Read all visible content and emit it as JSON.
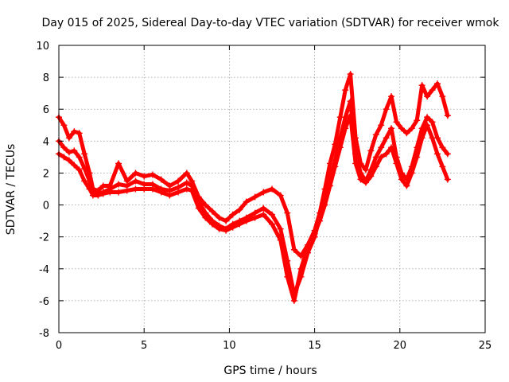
{
  "chart_data": {
    "type": "scatter",
    "title": "Day 015 of 2025, Sidereal Day-to-day VTEC variation (SDTVAR) for receiver wmok",
    "xlabel": "GPS time / hours",
    "ylabel": "SDTVAR / TECUs",
    "xlim": [
      0,
      25
    ],
    "ylim": [
      -8,
      10
    ],
    "xticks": [
      0,
      5,
      10,
      15,
      20,
      25
    ],
    "yticks": [
      -8,
      -6,
      -4,
      -2,
      0,
      2,
      4,
      6,
      8,
      10
    ],
    "grid": true,
    "marker": "+",
    "color": "#ff0000",
    "series": [
      {
        "name": "trace-upper",
        "x": [
          0,
          0.3,
          0.6,
          0.9,
          1.2,
          1.5,
          1.8,
          2.0,
          2.3,
          2.6,
          3.0,
          3.5,
          4.0,
          4.5,
          5.0,
          5.5,
          6.0,
          6.5,
          7.0,
          7.5,
          7.8,
          8.2,
          8.6,
          9.0,
          9.4,
          9.8,
          10.2,
          10.6,
          11.0,
          11.5,
          12.0,
          12.5,
          13.0,
          13.4,
          13.8,
          14.2,
          14.6,
          15.0,
          15.3,
          15.6,
          15.9,
          16.2,
          16.5,
          16.8,
          17.1,
          17.4,
          17.7,
          18.0,
          18.3,
          18.6,
          18.9,
          19.2,
          19.5,
          19.8,
          20.1,
          20.4,
          20.7,
          21.0,
          21.3,
          21.6,
          21.9,
          22.2,
          22.5,
          22.8
        ],
        "y": [
          5.5,
          5.0,
          4.2,
          4.6,
          4.5,
          3.2,
          2.0,
          1.0,
          0.9,
          1.2,
          1.2,
          2.6,
          1.5,
          2.0,
          1.8,
          1.9,
          1.6,
          1.2,
          1.5,
          2.0,
          1.5,
          0.5,
          0.0,
          -0.4,
          -0.8,
          -1.0,
          -0.6,
          -0.3,
          0.2,
          0.5,
          0.8,
          1.0,
          0.6,
          -0.5,
          -2.8,
          -3.2,
          -2.5,
          -1.6,
          -0.5,
          1.0,
          2.6,
          3.8,
          5.5,
          7.2,
          8.2,
          4.2,
          2.6,
          2.2,
          3.4,
          4.4,
          5.0,
          6.0,
          6.8,
          5.2,
          4.8,
          4.5,
          4.8,
          5.3,
          7.5,
          6.8,
          7.2,
          7.6,
          6.8,
          5.6
        ]
      },
      {
        "name": "trace-middle",
        "x": [
          0,
          0.3,
          0.6,
          0.9,
          1.2,
          1.5,
          1.8,
          2.0,
          2.3,
          2.6,
          3.0,
          3.5,
          4.0,
          4.5,
          5.0,
          5.5,
          6.0,
          6.5,
          7.0,
          7.5,
          7.8,
          8.2,
          8.6,
          9.0,
          9.4,
          9.8,
          10.2,
          10.6,
          11.0,
          11.5,
          12.0,
          12.5,
          13.0,
          13.4,
          13.8,
          14.2,
          14.6,
          15.0,
          15.3,
          15.6,
          15.9,
          16.2,
          16.5,
          16.8,
          17.1,
          17.4,
          17.7,
          18.0,
          18.3,
          18.6,
          18.9,
          19.2,
          19.5,
          19.8,
          20.1,
          20.4,
          20.7,
          21.0,
          21.3,
          21.6,
          21.9,
          22.2,
          22.5,
          22.8
        ],
        "y": [
          4.0,
          3.6,
          3.3,
          3.4,
          3.0,
          2.3,
          1.5,
          0.8,
          0.7,
          0.8,
          1.0,
          1.3,
          1.2,
          1.5,
          1.3,
          1.3,
          1.0,
          0.9,
          1.1,
          1.4,
          1.2,
          0.2,
          -0.5,
          -1.0,
          -1.3,
          -1.5,
          -1.2,
          -1.0,
          -0.8,
          -0.5,
          -0.2,
          -0.6,
          -1.5,
          -3.5,
          -5.6,
          -4.5,
          -3.0,
          -2.0,
          -0.8,
          0.4,
          1.6,
          2.8,
          4.2,
          5.5,
          6.5,
          3.2,
          2.0,
          1.5,
          2.2,
          3.0,
          3.6,
          4.2,
          4.8,
          3.0,
          2.0,
          1.6,
          2.4,
          3.6,
          4.8,
          5.5,
          5.2,
          4.2,
          3.6,
          3.2
        ]
      },
      {
        "name": "trace-lower",
        "x": [
          0,
          0.3,
          0.6,
          0.9,
          1.2,
          1.5,
          1.8,
          2.0,
          2.3,
          2.6,
          3.0,
          3.5,
          4.0,
          4.5,
          5.0,
          5.5,
          6.0,
          6.5,
          7.0,
          7.5,
          7.8,
          8.2,
          8.6,
          9.0,
          9.4,
          9.8,
          10.2,
          10.6,
          11.0,
          11.5,
          12.0,
          12.5,
          13.0,
          13.4,
          13.8,
          14.2,
          14.6,
          15.0,
          15.3,
          15.6,
          15.9,
          16.2,
          16.5,
          16.8,
          17.1,
          17.4,
          17.7,
          18.0,
          18.3,
          18.6,
          18.9,
          19.2,
          19.5,
          19.8,
          20.1,
          20.4,
          20.7,
          21.0,
          21.3,
          21.6,
          21.9,
          22.2,
          22.5,
          22.8
        ],
        "y": [
          3.2,
          3.0,
          2.8,
          2.5,
          2.2,
          1.5,
          1.0,
          0.6,
          0.6,
          0.7,
          0.8,
          0.8,
          0.9,
          1.0,
          1.0,
          1.0,
          0.8,
          0.6,
          0.8,
          1.0,
          0.9,
          -0.2,
          -0.8,
          -1.2,
          -1.5,
          -1.6,
          -1.4,
          -1.2,
          -1.0,
          -0.8,
          -0.6,
          -1.2,
          -2.2,
          -4.5,
          -6.0,
          -4.0,
          -2.6,
          -1.8,
          -1.0,
          0.0,
          1.2,
          2.4,
          3.6,
          4.8,
          5.6,
          2.6,
          1.6,
          1.4,
          1.8,
          2.4,
          3.0,
          3.2,
          3.6,
          2.6,
          1.6,
          1.2,
          2.0,
          3.0,
          4.2,
          5.0,
          4.2,
          3.2,
          2.4,
          1.6
        ]
      }
    ]
  }
}
